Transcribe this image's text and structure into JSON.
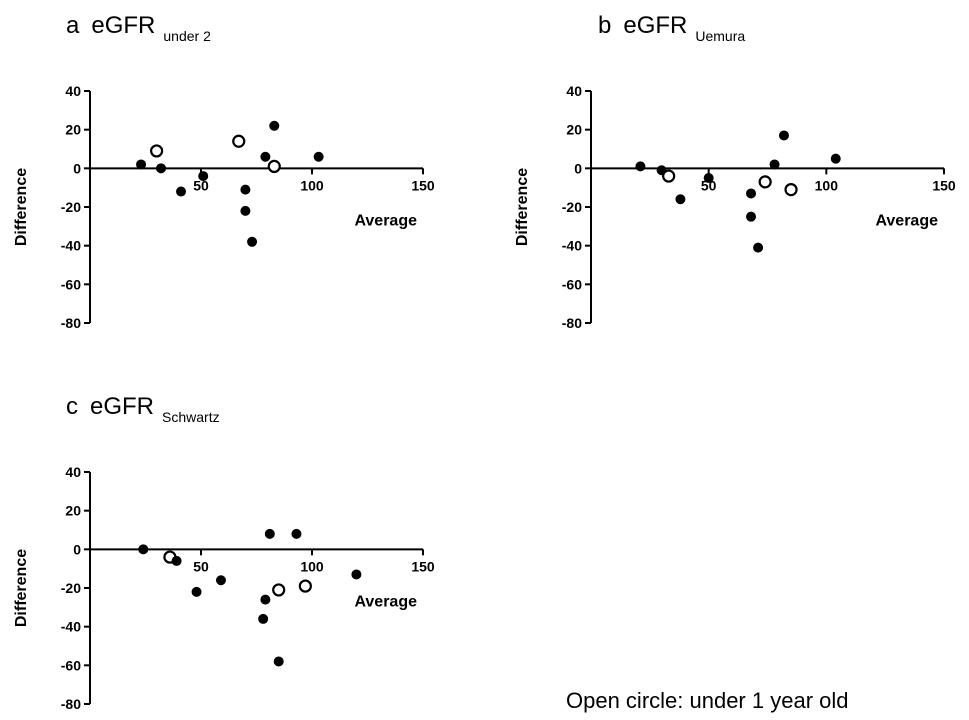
{
  "chart_data": [
    {
      "type": "scatter",
      "panel_letter": "a",
      "title_main": "eGFR",
      "title_subscript": "under 2",
      "xlabel": "Average",
      "ylabel": "Difference",
      "xlim": [
        0,
        150
      ],
      "ylim": [
        -80,
        40
      ],
      "xticks": [
        50,
        100,
        150
      ],
      "yticks": [
        40,
        20,
        0,
        -20,
        -40,
        -60,
        -80
      ],
      "grid": false,
      "points": [
        {
          "x": 23,
          "y": 2,
          "open": false
        },
        {
          "x": 30,
          "y": 9,
          "open": true
        },
        {
          "x": 32,
          "y": 0,
          "open": false
        },
        {
          "x": 41,
          "y": -12,
          "open": false
        },
        {
          "x": 51,
          "y": -4,
          "open": false
        },
        {
          "x": 67,
          "y": 14,
          "open": true
        },
        {
          "x": 70,
          "y": -11,
          "open": false
        },
        {
          "x": 70,
          "y": -22,
          "open": false
        },
        {
          "x": 73,
          "y": -38,
          "open": false
        },
        {
          "x": 79,
          "y": 6,
          "open": false
        },
        {
          "x": 83,
          "y": 22,
          "open": false
        },
        {
          "x": 83,
          "y": 1,
          "open": true
        },
        {
          "x": 103,
          "y": 6,
          "open": false
        }
      ]
    },
    {
      "type": "scatter",
      "panel_letter": "b",
      "title_main": "eGFR",
      "title_subscript": "Uemura",
      "xlabel": "Average",
      "ylabel": "Difference",
      "xlim": [
        0,
        150
      ],
      "ylim": [
        -80,
        40
      ],
      "xticks": [
        50,
        100,
        150
      ],
      "yticks": [
        40,
        20,
        0,
        -20,
        -40,
        -60,
        -80
      ],
      "grid": false,
      "points": [
        {
          "x": 21,
          "y": 1,
          "open": false
        },
        {
          "x": 30,
          "y": -1,
          "open": false
        },
        {
          "x": 33,
          "y": -4,
          "open": true
        },
        {
          "x": 38,
          "y": -16,
          "open": false
        },
        {
          "x": 50,
          "y": -5,
          "open": false
        },
        {
          "x": 68,
          "y": -13,
          "open": false
        },
        {
          "x": 68,
          "y": -25,
          "open": false
        },
        {
          "x": 71,
          "y": -41,
          "open": false
        },
        {
          "x": 74,
          "y": -7,
          "open": true
        },
        {
          "x": 78,
          "y": 2,
          "open": false
        },
        {
          "x": 82,
          "y": 17,
          "open": false
        },
        {
          "x": 85,
          "y": -11,
          "open": true
        },
        {
          "x": 104,
          "y": 5,
          "open": false
        }
      ]
    },
    {
      "type": "scatter",
      "panel_letter": "c",
      "title_main": "eGFR",
      "title_subscript": "Schwartz",
      "xlabel": "Average",
      "ylabel": "Difference",
      "xlim": [
        0,
        150
      ],
      "ylim": [
        -80,
        40
      ],
      "xticks": [
        50,
        100,
        150
      ],
      "yticks": [
        40,
        20,
        0,
        -20,
        -40,
        -60,
        -80
      ],
      "grid": false,
      "points": [
        {
          "x": 24,
          "y": 0,
          "open": false
        },
        {
          "x": 36,
          "y": -4,
          "open": true
        },
        {
          "x": 39,
          "y": -6,
          "open": false
        },
        {
          "x": 48,
          "y": -22,
          "open": false
        },
        {
          "x": 59,
          "y": -16,
          "open": false
        },
        {
          "x": 78,
          "y": -36,
          "open": false
        },
        {
          "x": 79,
          "y": -26,
          "open": false
        },
        {
          "x": 81,
          "y": 8,
          "open": false
        },
        {
          "x": 85,
          "y": -58,
          "open": false
        },
        {
          "x": 85,
          "y": -21,
          "open": true
        },
        {
          "x": 93,
          "y": 8,
          "open": false
        },
        {
          "x": 97,
          "y": -19,
          "open": true
        },
        {
          "x": 120,
          "y": -13,
          "open": false
        }
      ]
    }
  ],
  "note": "Open circle: under 1 year old"
}
